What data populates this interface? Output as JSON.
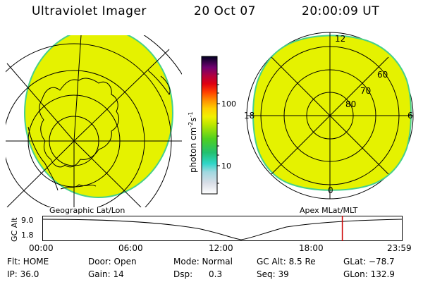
{
  "header": {
    "title": "Ultraviolet Imager",
    "date": "20 Oct 07",
    "time": "20:00:09 UT"
  },
  "left_panel": {
    "label": "Geographic Lat/Lon"
  },
  "right_panel": {
    "label": "Apex  MLat/MLT",
    "mlt_labels": [
      "12",
      "18",
      "6",
      "0"
    ],
    "lat_labels": [
      "60",
      "70",
      "80"
    ]
  },
  "colorbar": {
    "unit": "photon cm",
    "unit_exp1": "-2",
    "unit_mid": "s",
    "unit_exp2": "-1",
    "ticks": [
      "100",
      "10"
    ]
  },
  "altitude_plot": {
    "ylabel": "GC Alt",
    "y_ticks": [
      "9.0",
      "1.8"
    ],
    "x_ticks": [
      "00:00",
      "06:00",
      "12:00",
      "18:00",
      "23:59"
    ],
    "current_time_marker_fraction": 0.8335
  },
  "info": {
    "row1": {
      "flt": "Flt: HOME",
      "door": "Door: Open",
      "mode": "Mode: Normal",
      "gcalt": "GC Alt: 8.5 Re",
      "glat": "GLat: −78.7"
    },
    "row2": {
      "ip": "IP: 36.0",
      "gain": "Gain: 14",
      "dsp": "Dsp:      0.3",
      "seq": "Seq: 39",
      "glon": "GLon: 132.9"
    }
  },
  "colors": {
    "image_fill": "#e5f200",
    "image_edge": "#46d08a",
    "marker": "#cc0000"
  }
}
